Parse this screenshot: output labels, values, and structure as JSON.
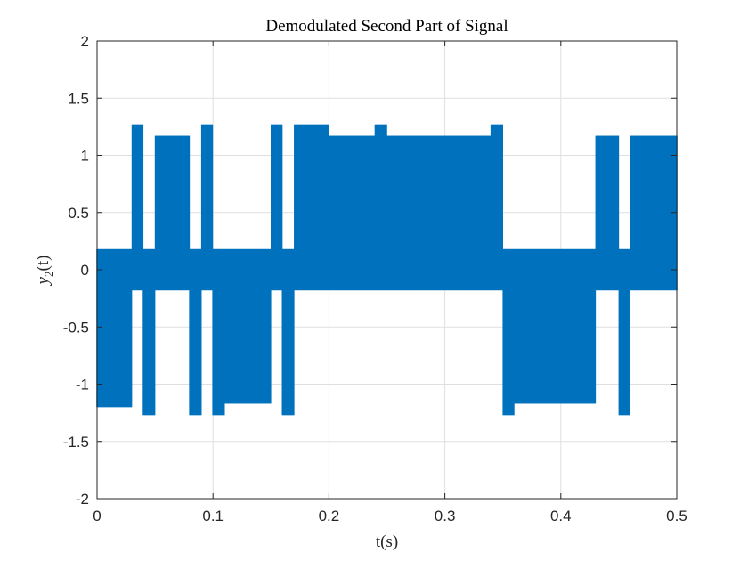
{
  "chart_data": {
    "type": "line",
    "title": "Demodulated Second Part of Signal",
    "xlabel": "t(s)",
    "ylabel_main": "y",
    "ylabel_sub": "2",
    "ylabel_arg": "(t)",
    "xlim": [
      0,
      0.5
    ],
    "ylim": [
      -2,
      2
    ],
    "xticks": [
      0,
      0.1,
      0.2,
      0.3,
      0.4,
      0.5
    ],
    "xtick_labels": [
      "0",
      "0.1",
      "0.2",
      "0.3",
      "0.4",
      "0.5"
    ],
    "yticks": [
      -2,
      -1.5,
      -1,
      -0.5,
      0,
      0.5,
      1,
      1.5,
      2
    ],
    "ytick_labels": [
      "-2",
      "-1.5",
      "-1",
      "-0.5",
      "0",
      "0.5",
      "1",
      "1.5",
      "2"
    ],
    "grid": true,
    "series": [
      {
        "color": "#0072BD",
        "bit_period": 0.01,
        "bit_starts": [
          0,
          0.01,
          0.02,
          0.03,
          0.04,
          0.05,
          0.06,
          0.07,
          0.08,
          0.09,
          0.1,
          0.11,
          0.12,
          0.13,
          0.14,
          0.15,
          0.16,
          0.17,
          0.18,
          0.19,
          0.2,
          0.21,
          0.22,
          0.23,
          0.24,
          0.25,
          0.26,
          0.27,
          0.28,
          0.29,
          0.3,
          0.31,
          0.32,
          0.33,
          0.34,
          0.35,
          0.36,
          0.37,
          0.38,
          0.39,
          0.4,
          0.41,
          0.42,
          0.43,
          0.44,
          0.45,
          0.46,
          0.47,
          0.48,
          0.49
        ],
        "high_envelope": [
          0.18,
          0.18,
          0.18,
          1.27,
          0.18,
          1.17,
          1.17,
          1.17,
          0.18,
          1.27,
          0.18,
          0.18,
          0.18,
          0.18,
          0.18,
          1.27,
          0.18,
          1.27,
          1.27,
          1.27,
          1.17,
          1.17,
          1.17,
          1.17,
          1.27,
          1.17,
          1.17,
          1.17,
          1.17,
          1.17,
          1.17,
          1.17,
          1.17,
          1.17,
          1.27,
          0.18,
          0.18,
          0.18,
          0.18,
          0.18,
          0.18,
          0.18,
          0.18,
          1.17,
          1.17,
          0.18,
          1.17,
          1.17,
          1.17,
          1.17
        ],
        "low_envelope": [
          -1.2,
          -1.2,
          -1.2,
          -0.18,
          -1.27,
          -0.18,
          -0.18,
          -0.18,
          -1.27,
          -0.18,
          -1.27,
          -1.17,
          -1.17,
          -1.17,
          -1.17,
          -0.18,
          -1.27,
          -0.18,
          -0.18,
          -0.18,
          -0.18,
          -0.18,
          -0.18,
          -0.18,
          -0.18,
          -0.18,
          -0.18,
          -0.18,
          -0.18,
          -0.18,
          -0.18,
          -0.18,
          -0.18,
          -0.18,
          -0.18,
          -1.27,
          -1.17,
          -1.17,
          -1.17,
          -1.17,
          -1.17,
          -1.17,
          -1.17,
          -0.18,
          -0.18,
          -1.27,
          -0.18,
          -0.18,
          -0.18,
          -0.18
        ]
      }
    ]
  }
}
